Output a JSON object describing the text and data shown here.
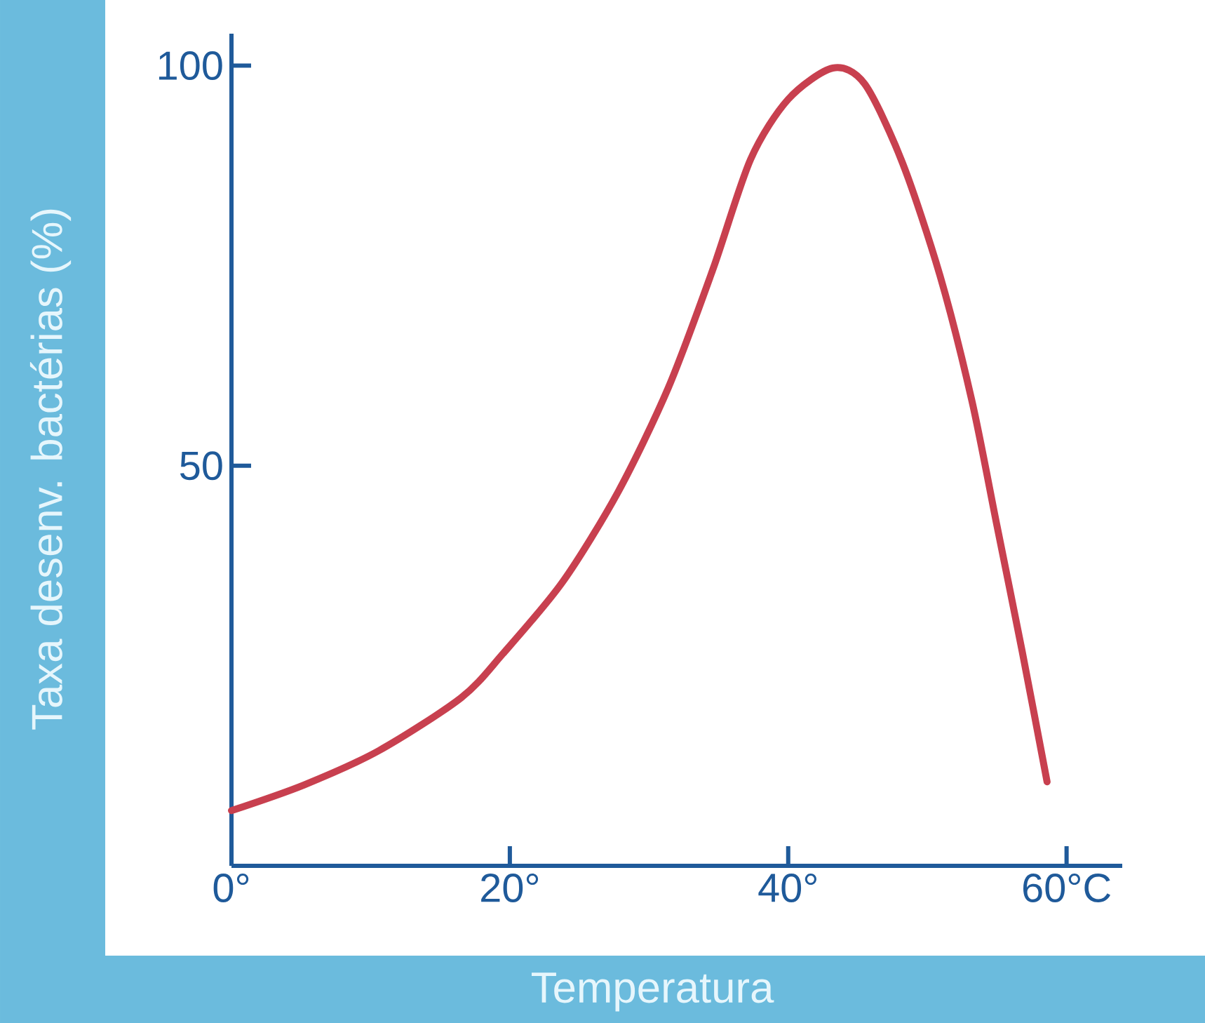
{
  "chart_data": {
    "type": "line",
    "xlabel": "Temperatura",
    "ylabel": "Taxa desenv. bactérias (%)",
    "xlim": [
      0,
      64
    ],
    "ylim": [
      0,
      104
    ],
    "xticks": [
      {
        "value": 0,
        "label": "0°"
      },
      {
        "value": 20,
        "label": "20°"
      },
      {
        "value": 40,
        "label": "40°"
      },
      {
        "value": 60,
        "label": "60°C"
      }
    ],
    "yticks": [
      50,
      100
    ],
    "marker": "none",
    "line_style": "solid",
    "series": [
      {
        "color": "#c8404f",
        "x": [
          0,
          5.2,
          10.6,
          16.5,
          19.5,
          23.8,
          27.8,
          31.4,
          34.6,
          37.3,
          40.0,
          43.2,
          45.5,
          48.2,
          50.9,
          53.2,
          55.0,
          56.8,
          58.6
        ],
        "values": [
          6.9,
          10.1,
          14.4,
          21.0,
          26.5,
          35.5,
          46.8,
          59.8,
          74.6,
          88.3,
          95.8,
          99.7,
          97.7,
          87.9,
          73.8,
          58.1,
          42.5,
          26.9,
          10.5
        ]
      }
    ]
  }
}
